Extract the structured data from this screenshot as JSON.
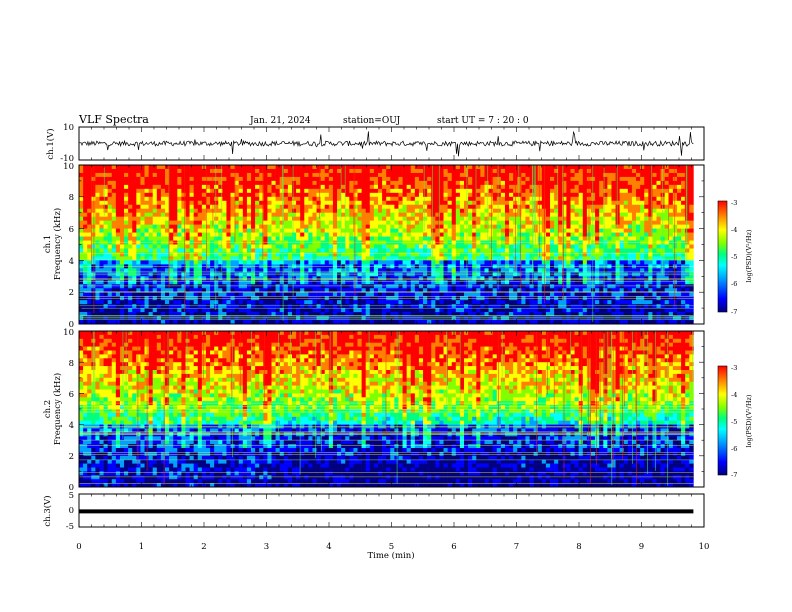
{
  "header": {
    "title": "VLF Spectra",
    "date": "Jan. 21, 2024",
    "station": "station=OUJ",
    "start_ut": "start UT =  7 : 20 : 0"
  },
  "chart_data": [
    {
      "type": "line",
      "panel": "ch1-waveform",
      "ylabel": "ch.1(V)",
      "ylim": [
        -10,
        10
      ],
      "y_ticks": [
        "10",
        "-10"
      ],
      "x_range_min": [
        0,
        9.83
      ],
      "baseline": 0,
      "description_values": {
        "typical_amplitude": 1.5,
        "max_spike": 8
      }
    },
    {
      "type": "heatmap",
      "panel": "ch1-spectrogram",
      "ylabel": "ch.1\nFrequency (kHz)",
      "ylabel_line1": "ch.1",
      "ylabel_line2": "Frequency (kHz)",
      "ylim": [
        0,
        10
      ],
      "y_ticks": [
        "0",
        "2",
        "4",
        "6",
        "8",
        "10"
      ],
      "x_range_min": [
        0,
        9.83
      ],
      "colorbar": {
        "label": "log(PSD)(V²/Hz)",
        "range": [
          -7,
          -3
        ],
        "ticks": [
          "-3",
          "-4",
          "-5",
          "-6",
          "-7"
        ]
      }
    },
    {
      "type": "heatmap",
      "panel": "ch2-spectrogram",
      "ylabel_line1": "ch.2",
      "ylabel_line2": "Frequency (kHz)",
      "ylim": [
        0,
        10
      ],
      "y_ticks": [
        "0",
        "2",
        "4",
        "6",
        "8",
        "10"
      ],
      "x_range_min": [
        0,
        9.83
      ],
      "colorbar": {
        "label": "log(PSD)(V²/Hz)",
        "range": [
          -7,
          -3
        ],
        "ticks": [
          "-3",
          "-4",
          "-5",
          "-6",
          "-7"
        ]
      }
    },
    {
      "type": "line",
      "panel": "ch3-waveform",
      "ylabel": "ch.3(V)",
      "ylim": [
        -5,
        5
      ],
      "y_ticks": [
        "5",
        "0",
        "-5"
      ],
      "x_range_min": [
        0,
        9.83
      ],
      "constant_value": -0.3
    }
  ],
  "x_axis": {
    "label": "Time (min)",
    "range": [
      0,
      10
    ],
    "ticks": [
      "0",
      "1",
      "2",
      "3",
      "4",
      "5",
      "6",
      "7",
      "8",
      "9",
      "10"
    ]
  },
  "colors": {
    "colormap": [
      "#000080",
      "#0000ff",
      "#00a0ff",
      "#00ffff",
      "#00ff80",
      "#80ff00",
      "#ffff00",
      "#ff8000",
      "#ff0000"
    ]
  }
}
